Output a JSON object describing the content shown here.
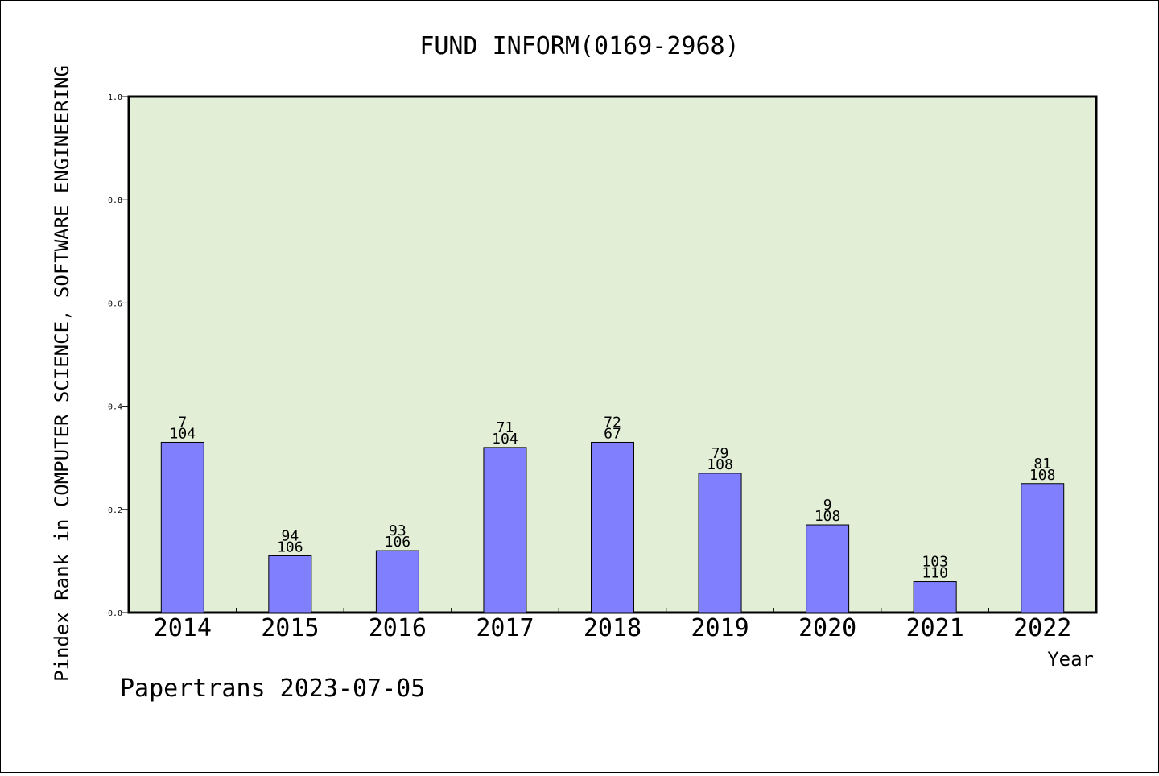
{
  "chart_data": {
    "type": "bar",
    "title": "FUND INFORM(0169-2968)",
    "xlabel": "Year",
    "ylabel": "Pindex Rank in COMPUTER SCIENCE, SOFTWARE ENGINEERING",
    "footer": "Papertrans 2023-07-05",
    "ylim": [
      0,
      1.0
    ],
    "yticks": [
      "0.0",
      "0.2",
      "0.4",
      "0.6",
      "0.8",
      "1.0"
    ],
    "categories": [
      "2014",
      "2015",
      "2016",
      "2017",
      "2018",
      "2019",
      "2020",
      "2021",
      "2022"
    ],
    "values": [
      0.33,
      0.11,
      0.12,
      0.32,
      0.33,
      0.27,
      0.17,
      0.06,
      0.25
    ],
    "labels_top": [
      "7",
      "94",
      "93",
      "71",
      "72",
      "79",
      "9",
      "103",
      "81"
    ],
    "labels_bottom": [
      "104",
      "106",
      "106",
      "104",
      "67",
      "108",
      "108",
      "110",
      "108"
    ],
    "bar_color": "#8080ff",
    "plot_background": "#e2efd6",
    "grid": false
  }
}
